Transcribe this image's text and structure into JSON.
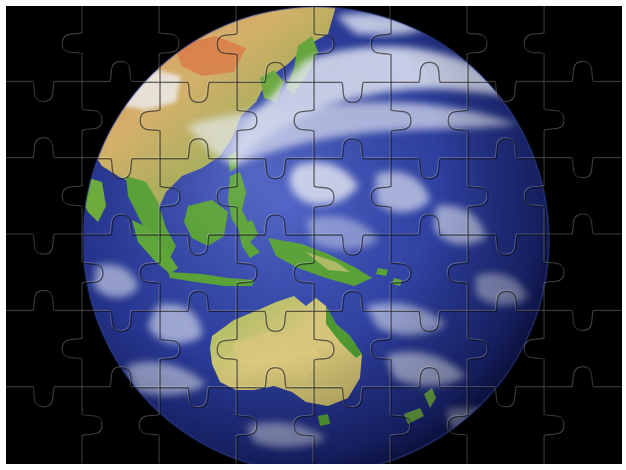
{
  "puzzle": {
    "image": "earth-globe-asia-pacific",
    "columns": 8,
    "rows": 6,
    "piece_count": 48
  },
  "colors": {
    "space": "#000000",
    "ocean": "#2e3f9e",
    "ocean_deep": "#1a2372",
    "land_green": "#5aa437",
    "land_yellow": "#d6c77a",
    "land_orange": "#d7824e",
    "cloud": "#e6ebf5",
    "frame": "#fdfdfd"
  }
}
